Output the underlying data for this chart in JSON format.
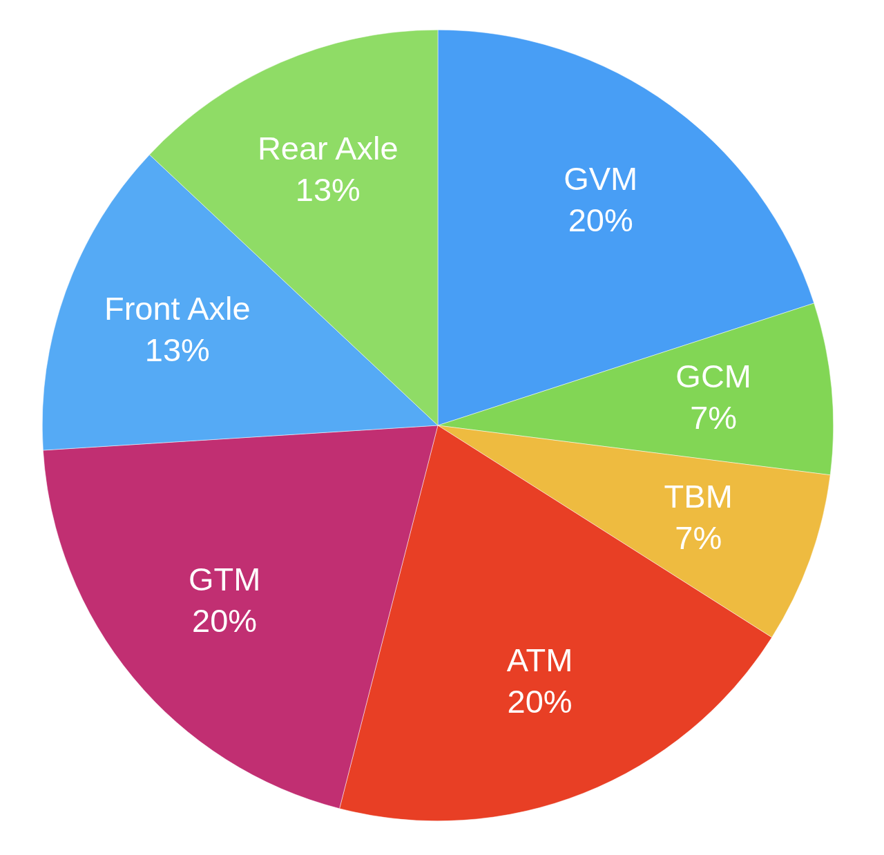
{
  "chart_data": {
    "type": "pie",
    "categories": [
      "GVM",
      "GCM",
      "TBM",
      "ATM",
      "GTM",
      "Front Axle",
      "Rear Axle"
    ],
    "values": [
      20,
      7,
      7,
      20,
      20,
      13,
      13
    ],
    "value_labels": [
      "20%",
      "7%",
      "7%",
      "20%",
      "20%",
      "13%",
      "13%"
    ],
    "colors": [
      "#489ef5",
      "#82d655",
      "#eebb40",
      "#e83f25",
      "#c12f72",
      "#55aaf5",
      "#8fdc66"
    ]
  }
}
